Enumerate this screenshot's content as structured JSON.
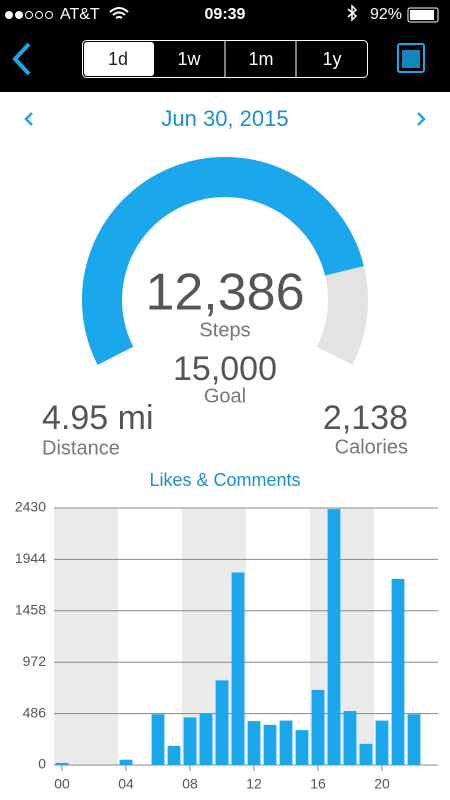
{
  "status_bar": {
    "carrier": "AT&T",
    "time": "09:39",
    "battery": "92%"
  },
  "nav": {
    "tabs": [
      "1d",
      "1w",
      "1m",
      "1y"
    ]
  },
  "date": "Jun 30, 2015",
  "gauge": {
    "steps": {
      "value": 12386,
      "label": "12,386"
    },
    "steps_label": "Steps",
    "goal": {
      "value": 15000,
      "label": "15,000"
    },
    "goal_label": "Goal",
    "color": "#1aa7ec",
    "track_color": "#e3e3e3"
  },
  "stats": [
    {
      "value": "4.95 mi",
      "label": "Distance"
    },
    {
      "value": "2,138",
      "label": "Calories"
    }
  ],
  "chart_data": {
    "type": "bar",
    "title": "Likes & Comments",
    "color": "#1aa7ec",
    "categories": [
      "00",
      null,
      null,
      null,
      "04",
      null,
      null,
      null,
      "08",
      null,
      null,
      null,
      "12",
      null,
      null,
      null,
      "16",
      null,
      null,
      null,
      "20",
      null,
      null,
      null
    ],
    "values": [
      20,
      0,
      0,
      0,
      50,
      0,
      480,
      180,
      450,
      490,
      800,
      1820,
      415,
      380,
      420,
      330,
      710,
      2420,
      510,
      200,
      420,
      1760,
      480,
      0
    ],
    "ylim": [
      0,
      2430
    ],
    "yticks": [
      0,
      486,
      972,
      1458,
      1944,
      2430
    ],
    "grid": true
  }
}
